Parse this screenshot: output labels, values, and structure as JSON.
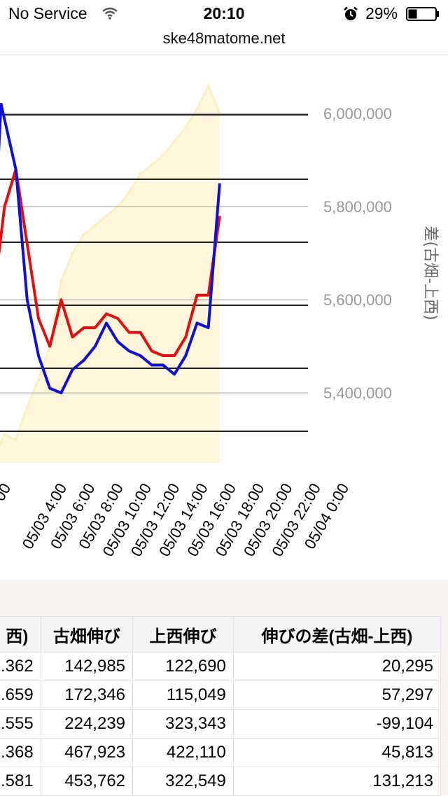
{
  "status_bar": {
    "carrier": "No Service",
    "time": "20:10",
    "battery_percent": "29%",
    "icons": [
      "wifi-icon",
      "alarm-icon",
      "battery-icon"
    ]
  },
  "url_bar": {
    "domain": "ske48matome.net"
  },
  "chart_data": {
    "type": "line",
    "title": "",
    "y_right": {
      "label": "差(古畑-上西)",
      "ticks": [
        5400000,
        5600000,
        5800000,
        6000000
      ],
      "tick_labels": [
        "5,400,000",
        "5,600,000",
        "5,800,000",
        "6,000,000"
      ],
      "range": [
        5250000,
        6080000
      ]
    },
    "x": {
      "tick_labels": [
        "05/03 4:00",
        "05/03 6:00",
        "05/03 8:00",
        "05/03 10:00",
        "05/03 12:00",
        "05/03 14:00",
        "05/03 16:00",
        "05/03 18:00",
        "05/03 20:00",
        "05/03 22:00",
        "05/04 0:00"
      ],
      "partial_tick_label": "00"
    },
    "x_range": [
      -2.4,
      24.8
    ],
    "series": [
      {
        "role": "area",
        "color": "#fff6dc",
        "line_color": "#fdf0c0",
        "points": [
          [
            -2.4,
            5290000
          ],
          [
            -2,
            5310000
          ],
          [
            -1,
            5300000
          ],
          [
            0,
            5370000
          ],
          [
            1,
            5430000
          ],
          [
            2,
            5500000
          ],
          [
            3,
            5640000
          ],
          [
            4,
            5700000
          ],
          [
            5,
            5740000
          ],
          [
            6,
            5760000
          ],
          [
            7,
            5780000
          ],
          [
            8,
            5800000
          ],
          [
            9,
            5830000
          ],
          [
            10,
            5870000
          ],
          [
            11,
            5890000
          ],
          [
            12,
            5910000
          ],
          [
            13,
            5940000
          ],
          [
            14,
            5970000
          ],
          [
            15,
            6010000
          ],
          [
            16,
            6060000
          ],
          [
            17,
            6000000
          ]
        ]
      },
      {
        "role": "line",
        "color": "#e01010",
        "points": [
          [
            -3,
            5600000
          ],
          [
            -2,
            5800000
          ],
          [
            -1,
            5880000
          ],
          [
            0,
            5720000
          ],
          [
            1,
            5560000
          ],
          [
            2,
            5500000
          ],
          [
            3,
            5600000
          ],
          [
            4,
            5520000
          ],
          [
            5,
            5540000
          ],
          [
            6,
            5540000
          ],
          [
            7,
            5570000
          ],
          [
            8,
            5560000
          ],
          [
            9,
            5530000
          ],
          [
            10,
            5530000
          ],
          [
            11,
            5490000
          ],
          [
            12,
            5480000
          ],
          [
            13,
            5480000
          ],
          [
            14,
            5520000
          ],
          [
            15,
            5610000
          ],
          [
            16,
            5610000
          ],
          [
            17,
            5780000
          ]
        ]
      },
      {
        "role": "line",
        "color": "#1010d0",
        "points": [
          [
            -3,
            5700000
          ],
          [
            -2.3,
            6020000
          ],
          [
            -1,
            5880000
          ],
          [
            0,
            5600000
          ],
          [
            1,
            5480000
          ],
          [
            2,
            5410000
          ],
          [
            3,
            5400000
          ],
          [
            4,
            5450000
          ],
          [
            5,
            5470000
          ],
          [
            6,
            5500000
          ],
          [
            7,
            5550000
          ],
          [
            8,
            5510000
          ],
          [
            9,
            5490000
          ],
          [
            10,
            5480000
          ],
          [
            11,
            5460000
          ],
          [
            12,
            5460000
          ],
          [
            13,
            5440000
          ],
          [
            14,
            5480000
          ],
          [
            15,
            5550000
          ],
          [
            16,
            5540000
          ],
          [
            17,
            5850000
          ]
        ]
      }
    ],
    "colors": {
      "gridline_grey": "#b8b8b8",
      "gridline_black": "#000000",
      "axis_label": "#999999"
    }
  },
  "table": {
    "headers": [
      "西)",
      "古畑伸び",
      "上西伸び",
      "伸びの差(古畑-上西)"
    ],
    "rows": [
      [
        ".362",
        "142,985",
        "122,690",
        "20,295"
      ],
      [
        ".659",
        "172,346",
        "115,049",
        "57,297"
      ],
      [
        ".555",
        "224,239",
        "323,343",
        "-99,104"
      ],
      [
        ".368",
        "467,923",
        "422,110",
        "45,813"
      ],
      [
        ".581",
        "453,762",
        "322,549",
        "131,213"
      ]
    ]
  }
}
